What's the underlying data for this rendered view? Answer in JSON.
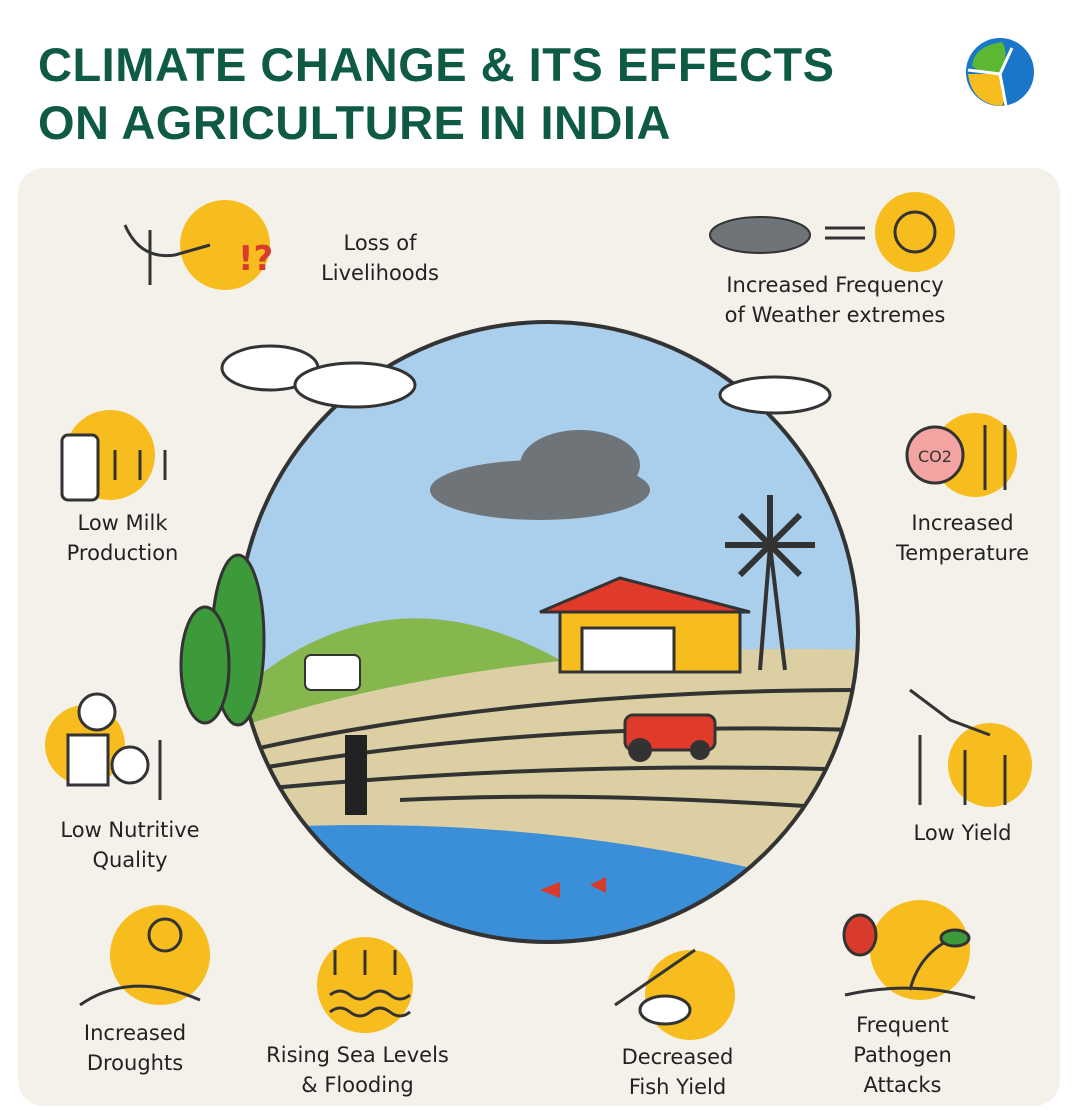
{
  "header": {
    "title_line1": "CLIMATE CHANGE & ITS EFFECTS",
    "title_line2": "ON AGRICULTURE IN INDIA"
  },
  "colors": {
    "title": "#0e5a45",
    "accent_yellow": "#f7bd1e",
    "panel": "#f4f1ea",
    "sky": "#a9cfec",
    "water": "#3b8fd8"
  },
  "effects": [
    {
      "icon": "crop-hand-question-icon",
      "line1": "Loss of",
      "line2": "Livelihoods"
    },
    {
      "icon": "cloud-sun-exchange-icon",
      "line1": "Increased Frequency",
      "line2": "of Weather extremes"
    },
    {
      "icon": "milk-bottle-down-icon",
      "line1": "Low Milk",
      "line2": "Production"
    },
    {
      "icon": "co2-up-icon",
      "line1": "Increased",
      "line2": "Temperature"
    },
    {
      "icon": "person-nutrition-down-icon",
      "line1": "Low Nutritive",
      "line2": "Quality"
    },
    {
      "icon": "wheat-down-icon",
      "line1": "Low Yield",
      "line2": ""
    },
    {
      "icon": "sun-cracked-earth-icon",
      "line1": "Increased",
      "line2": "Droughts"
    },
    {
      "icon": "waves-up-icon",
      "line1": "Rising Sea Levels",
      "line2": "& Flooding"
    },
    {
      "icon": "fish-down-icon",
      "line1": "Decreased",
      "line2": "Fish Yield"
    },
    {
      "icon": "bug-plant-icon",
      "line1": "Frequent",
      "line2": "Pathogen",
      "line3": "Attacks"
    }
  ],
  "illustration": {
    "co2_label": "CO2",
    "question_mark": "!?"
  }
}
